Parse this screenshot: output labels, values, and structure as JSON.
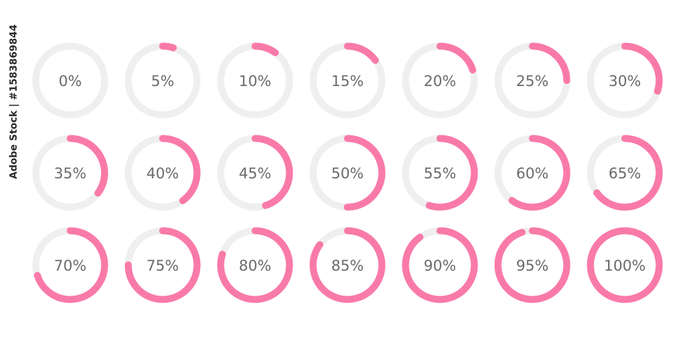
{
  "colors": {
    "track": "#efefef",
    "progress": "#f97aa8",
    "label": "#6a6a6a"
  },
  "rings": [
    {
      "label": "0%",
      "value": 0
    },
    {
      "label": "5%",
      "value": 5
    },
    {
      "label": "10%",
      "value": 10
    },
    {
      "label": "15%",
      "value": 15
    },
    {
      "label": "20%",
      "value": 20
    },
    {
      "label": "25%",
      "value": 25
    },
    {
      "label": "30%",
      "value": 30
    },
    {
      "label": "35%",
      "value": 35
    },
    {
      "label": "40%",
      "value": 40
    },
    {
      "label": "45%",
      "value": 45
    },
    {
      "label": "50%",
      "value": 50
    },
    {
      "label": "55%",
      "value": 55
    },
    {
      "label": "60%",
      "value": 60
    },
    {
      "label": "65%",
      "value": 65
    },
    {
      "label": "70%",
      "value": 70
    },
    {
      "label": "75%",
      "value": 75
    },
    {
      "label": "80%",
      "value": 80
    },
    {
      "label": "85%",
      "value": 85
    },
    {
      "label": "90%",
      "value": 90
    },
    {
      "label": "95%",
      "value": 95
    },
    {
      "label": "100%",
      "value": 100
    }
  ],
  "credit": "Adobe Stock | #1583869844"
}
